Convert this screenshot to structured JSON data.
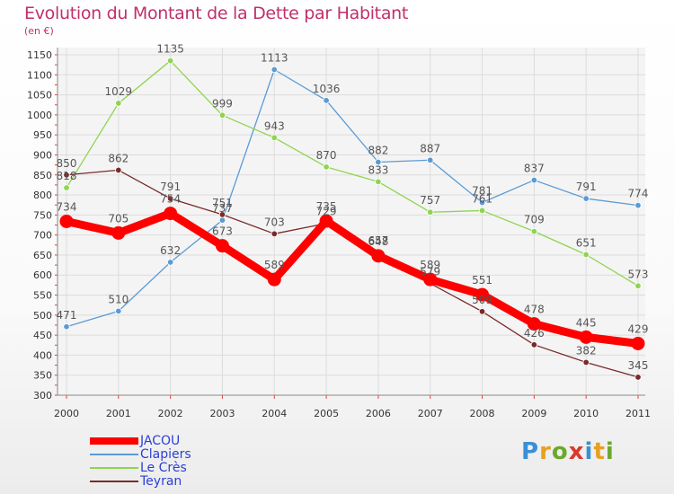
{
  "title": "Evolution du Montant de la Dette par Habitant",
  "subtitle": "(en €)",
  "brand": {
    "text": "Proxiti",
    "letters": [
      "P",
      "r",
      "o",
      "x",
      "i",
      "t",
      "i"
    ],
    "letter_colors": [
      "#3a8fd6",
      "#e8a020",
      "#6aa82e",
      "#d83a2a",
      "#3a8fd6",
      "#e8a020",
      "#6aa82e"
    ]
  },
  "chart_data": {
    "type": "line",
    "title": "Evolution du Montant de la Dette par Habitant",
    "subtitle": "(en €)",
    "xlabel": "",
    "ylabel": "",
    "ylim": [
      300,
      1150
    ],
    "yticks": [
      300,
      350,
      400,
      450,
      500,
      550,
      600,
      650,
      700,
      750,
      800,
      850,
      900,
      950,
      1000,
      1050,
      1100,
      1150
    ],
    "grid": true,
    "legend_position": "bottom-left",
    "categories": [
      "2000",
      "2001",
      "2002",
      "2003",
      "2004",
      "2005",
      "2006",
      "2007",
      "2008",
      "2009",
      "2010",
      "2011"
    ],
    "series": [
      {
        "name": "JACOU",
        "color": "#ff0000",
        "values": [
          734,
          705,
          754,
          673,
          589,
          735,
          648,
          589,
          551,
          478,
          445,
          429
        ],
        "labels": [
          "734",
          "705",
          "754",
          "673",
          "589",
          "735",
          "648",
          "589",
          "551",
          "478",
          "445",
          "429"
        ]
      },
      {
        "name": "Clapiers",
        "color": "#5b9bd5",
        "values": [
          471,
          510,
          632,
          737,
          1113,
          1036,
          882,
          887,
          781,
          837,
          791,
          774
        ],
        "labels": [
          "471",
          "510",
          "632",
          "737",
          "1113",
          "1036",
          "882",
          "887",
          "781",
          "837",
          "791",
          "774"
        ]
      },
      {
        "name": "Le Crès",
        "color": "#8fd450",
        "values": [
          818,
          1029,
          1135,
          999,
          943,
          870,
          833,
          757,
          761,
          709,
          651,
          573
        ],
        "labels": [
          "818",
          "1029",
          "1135",
          "999",
          "943",
          "870",
          "833",
          "757",
          "761",
          "709",
          "651",
          "573"
        ]
      },
      {
        "name": "Teyran",
        "color": "#7a2a2a",
        "values": [
          850,
          862,
          791,
          751,
          703,
          729,
          657,
          579,
          509,
          426,
          382,
          345
        ],
        "labels": [
          "850",
          "862",
          "791",
          "751",
          "703",
          "729",
          "657",
          "579",
          "509",
          "426",
          "382",
          "345"
        ]
      }
    ]
  }
}
